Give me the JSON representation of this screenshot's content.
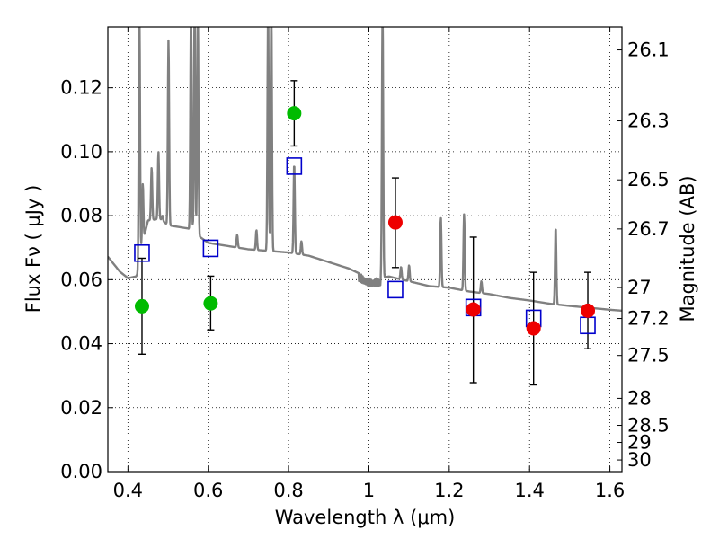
{
  "chart_data": {
    "type": "scatter",
    "xlabel": "Wavelength  λ (μm)",
    "ylabel": "Flux  Fν  ( μJy )",
    "y2label": "Magnitude (AB)",
    "xlim": [
      0.35,
      1.63
    ],
    "ylim": [
      0.0,
      0.139
    ],
    "grid": true,
    "x_ticks": [
      0.4,
      0.6,
      0.8,
      1.0,
      1.2,
      1.4,
      1.6
    ],
    "x_tick_labels": [
      "0.4",
      "0.6",
      "0.8",
      "1",
      "1.2",
      "1.4",
      "1.6"
    ],
    "y_ticks": [
      0.0,
      0.02,
      0.04,
      0.06,
      0.08,
      0.1,
      0.12
    ],
    "y_tick_labels": [
      "0.00",
      "0.02",
      "0.04",
      "0.06",
      "0.08",
      "0.10",
      "0.12"
    ],
    "magnitude_ticks": [
      "26.1",
      "26.3",
      "26.5",
      "26.7",
      "27",
      "27.2",
      "27.5",
      "28",
      "28.5",
      "29",
      "30"
    ],
    "series": [
      {
        "marker": "circle",
        "color": "#00bb00",
        "points": [
          {
            "x": 0.435,
            "y": 0.0517,
            "err_low": 0.0367,
            "err_high": 0.0667
          },
          {
            "x": 0.606,
            "y": 0.0526,
            "err_low": 0.0443,
            "err_high": 0.0611
          },
          {
            "x": 0.814,
            "y": 0.112,
            "err_low": 0.1018,
            "err_high": 0.1222
          }
        ]
      },
      {
        "marker": "circle",
        "color": "#ee0000",
        "points": [
          {
            "x": 1.066,
            "y": 0.0779,
            "err_low": 0.0638,
            "err_high": 0.0918
          },
          {
            "x": 1.26,
            "y": 0.0507,
            "err_low": 0.0278,
            "err_high": 0.0733
          },
          {
            "x": 1.41,
            "y": 0.0448,
            "err_low": 0.0271,
            "err_high": 0.0623
          },
          {
            "x": 1.545,
            "y": 0.0503,
            "err_low": 0.0384,
            "err_high": 0.0623
          }
        ]
      },
      {
        "marker": "open-square",
        "color": "#0000cc",
        "points": [
          {
            "x": 0.435,
            "y": 0.0683
          },
          {
            "x": 0.606,
            "y": 0.0698
          },
          {
            "x": 0.814,
            "y": 0.0955
          },
          {
            "x": 1.066,
            "y": 0.0569
          },
          {
            "x": 1.26,
            "y": 0.0513
          },
          {
            "x": 1.41,
            "y": 0.0479
          },
          {
            "x": 1.545,
            "y": 0.0457
          }
        ]
      },
      {
        "marker": "line",
        "color": "#808080",
        "continuum": [
          [
            0.35,
            0.0672
          ],
          [
            0.38,
            0.0625
          ],
          [
            0.4,
            0.0605
          ],
          [
            0.42,
            0.061
          ],
          [
            0.425,
            0.062
          ],
          [
            0.43,
            0.068
          ],
          [
            0.45,
            0.0785
          ],
          [
            0.48,
            0.079
          ],
          [
            0.5,
            0.077
          ],
          [
            0.55,
            0.076
          ],
          [
            0.6,
            0.0715
          ],
          [
            0.65,
            0.0705
          ],
          [
            0.7,
            0.0695
          ],
          [
            0.75,
            0.069
          ],
          [
            0.8,
            0.0685
          ],
          [
            0.85,
            0.0675
          ],
          [
            0.9,
            0.0655
          ],
          [
            0.95,
            0.0635
          ],
          [
            1.0,
            0.0605
          ],
          [
            1.03,
            0.0605
          ],
          [
            1.05,
            0.061
          ],
          [
            1.1,
            0.0595
          ],
          [
            1.15,
            0.058
          ],
          [
            1.2,
            0.0575
          ],
          [
            1.25,
            0.0563
          ],
          [
            1.3,
            0.0555
          ],
          [
            1.35,
            0.0543
          ],
          [
            1.4,
            0.0535
          ],
          [
            1.45,
            0.0525
          ],
          [
            1.5,
            0.0518
          ],
          [
            1.55,
            0.0512
          ],
          [
            1.6,
            0.0506
          ],
          [
            1.63,
            0.0503
          ]
        ],
        "emission_lines": [
          {
            "x": 0.4285,
            "peak": 0.145
          },
          {
            "x": 0.437,
            "peak": 0.09
          },
          {
            "x": 0.459,
            "peak": 0.095
          },
          {
            "x": 0.476,
            "peak": 0.1
          },
          {
            "x": 0.486,
            "peak": 0.08
          },
          {
            "x": 0.501,
            "peak": 0.135
          },
          {
            "x": 0.557,
            "peak": 0.145
          },
          {
            "x": 0.566,
            "peak": 0.145
          },
          {
            "x": 0.574,
            "peak": 0.145
          },
          {
            "x": 0.672,
            "peak": 0.074
          },
          {
            "x": 0.72,
            "peak": 0.0755
          },
          {
            "x": 0.749,
            "peak": 0.145
          },
          {
            "x": 0.757,
            "peak": 0.145
          },
          {
            "x": 0.814,
            "peak": 0.0965
          },
          {
            "x": 0.832,
            "peak": 0.072
          },
          {
            "x": 1.034,
            "peak": 0.145
          },
          {
            "x": 1.08,
            "peak": 0.064
          },
          {
            "x": 1.1,
            "peak": 0.0645
          },
          {
            "x": 1.179,
            "peak": 0.0795
          },
          {
            "x": 1.237,
            "peak": 0.0805
          },
          {
            "x": 1.28,
            "peak": 0.0595
          },
          {
            "x": 1.465,
            "peak": 0.0765
          }
        ]
      }
    ]
  }
}
